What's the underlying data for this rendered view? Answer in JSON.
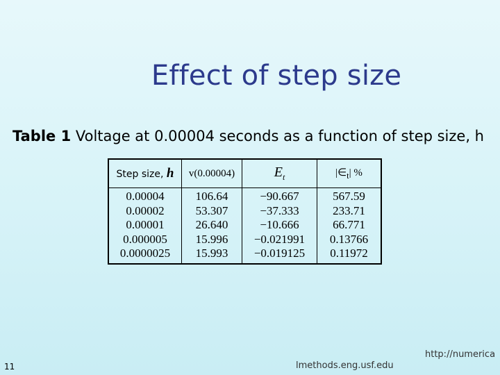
{
  "slide": {
    "title": "Effect of step size",
    "caption": {
      "label": "Table 1",
      "text": " Voltage at 0.00004 seconds as a function of step size, h"
    },
    "slide_number": "11",
    "footer_url_part1": "http://numerica",
    "footer_url_part2": "lmethods.eng.usf.edu"
  },
  "table": {
    "headers": {
      "step_size": "Step size, ",
      "step_size_symbol": "h",
      "voltage": "v(0.00004)",
      "true_error": "E",
      "true_error_sub": "t",
      "rel_error": "|∈",
      "rel_error_sub": "t",
      "rel_error_suffix": "| %"
    },
    "columns": {
      "step_size": [
        "0.00004",
        "0.00002",
        "0.00001",
        "0.000005",
        "0.0000025"
      ],
      "voltage": [
        "106.64",
        "53.307",
        "26.640",
        "15.996",
        "15.993"
      ],
      "true_error": [
        "−90.667",
        "−37.333",
        "−10.666",
        "−0.021991",
        "−0.019125"
      ],
      "rel_error": [
        "567.59",
        "233.71",
        "66.771",
        "0.13766",
        "0.11972"
      ]
    }
  }
}
